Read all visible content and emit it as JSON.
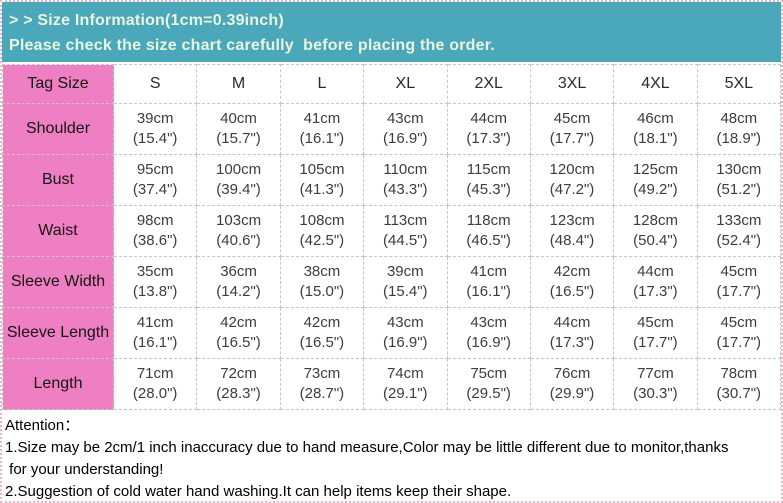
{
  "banner": {
    "title": "> > Size Information(1cm=0.39inch)",
    "subtitle": "Please check the size chart carefully  before placing the order.",
    "background_color": "#4BA7BA",
    "text_color": "#E8F6DF"
  },
  "table": {
    "columns": [
      "Tag Size",
      "S",
      "M",
      "L",
      "XL",
      "2XL",
      "3XL",
      "4XL",
      "5XL"
    ],
    "label_background_color": "#EF7FC3",
    "rows": [
      {
        "label": "Shoulder",
        "cells": [
          {
            "cm": "39cm",
            "inch": "(15.4\")"
          },
          {
            "cm": "40cm",
            "inch": "(15.7\")"
          },
          {
            "cm": "41cm",
            "inch": "(16.1\")"
          },
          {
            "cm": "43cm",
            "inch": "(16.9\")"
          },
          {
            "cm": "44cm",
            "inch": "(17.3\")"
          },
          {
            "cm": "45cm",
            "inch": "(17.7\")"
          },
          {
            "cm": "46cm",
            "inch": "(18.1\")"
          },
          {
            "cm": "48cm",
            "inch": "(18.9\")"
          }
        ]
      },
      {
        "label": "Bust",
        "cells": [
          {
            "cm": "95cm",
            "inch": "(37.4\")"
          },
          {
            "cm": "100cm",
            "inch": "(39.4\")"
          },
          {
            "cm": "105cm",
            "inch": "(41.3\")"
          },
          {
            "cm": "110cm",
            "inch": "(43.3\")"
          },
          {
            "cm": "115cm",
            "inch": "(45.3\")"
          },
          {
            "cm": "120cm",
            "inch": "(47.2\")"
          },
          {
            "cm": "125cm",
            "inch": "(49.2\")"
          },
          {
            "cm": "130cm",
            "inch": "(51.2\")"
          }
        ]
      },
      {
        "label": "Waist",
        "cells": [
          {
            "cm": "98cm",
            "inch": "(38.6\")"
          },
          {
            "cm": "103cm",
            "inch": "(40.6\")"
          },
          {
            "cm": "108cm",
            "inch": "(42.5\")"
          },
          {
            "cm": "113cm",
            "inch": "(44.5\")"
          },
          {
            "cm": "118cm",
            "inch": "(46.5\")"
          },
          {
            "cm": "123cm",
            "inch": "(48.4\")"
          },
          {
            "cm": "128cm",
            "inch": "(50.4\")"
          },
          {
            "cm": "133cm",
            "inch": "(52.4\")"
          }
        ]
      },
      {
        "label": "Sleeve Width",
        "cells": [
          {
            "cm": "35cm",
            "inch": "(13.8\")"
          },
          {
            "cm": "36cm",
            "inch": "(14.2\")"
          },
          {
            "cm": "38cm",
            "inch": "(15.0\")"
          },
          {
            "cm": "39cm",
            "inch": "(15.4\")"
          },
          {
            "cm": "41cm",
            "inch": "(16.1\")"
          },
          {
            "cm": "42cm",
            "inch": "(16.5\")"
          },
          {
            "cm": "44cm",
            "inch": "(17.3\")"
          },
          {
            "cm": "45cm",
            "inch": "(17.7\")"
          }
        ]
      },
      {
        "label": "Sleeve Length",
        "cells": [
          {
            "cm": "41cm",
            "inch": "(16.1\")"
          },
          {
            "cm": "42cm",
            "inch": "(16.5\")"
          },
          {
            "cm": "42cm",
            "inch": "(16.5\")"
          },
          {
            "cm": "43cm",
            "inch": "(16.9\")"
          },
          {
            "cm": "43cm",
            "inch": "(16.9\")"
          },
          {
            "cm": "44cm",
            "inch": "(17.3\")"
          },
          {
            "cm": "45cm",
            "inch": "(17.7\")"
          },
          {
            "cm": "45cm",
            "inch": "(17.7\")"
          }
        ]
      },
      {
        "label": "Length",
        "cells": [
          {
            "cm": "71cm",
            "inch": "(28.0\")"
          },
          {
            "cm": "72cm",
            "inch": "(28.3\")"
          },
          {
            "cm": "73cm",
            "inch": "(28.7\")"
          },
          {
            "cm": "74cm",
            "inch": "(29.1\")"
          },
          {
            "cm": "75cm",
            "inch": "(29.5\")"
          },
          {
            "cm": "76cm",
            "inch": "(29.9\")"
          },
          {
            "cm": "77cm",
            "inch": "(30.3\")"
          },
          {
            "cm": "78cm",
            "inch": "(30.7\")"
          }
        ]
      }
    ]
  },
  "notes": {
    "title": "Attention：",
    "lines": [
      "1.Size may be 2cm/1 inch inaccuracy due to hand measure,Color may be little different due to monitor,thanks",
      " for your understanding!",
      "2.Suggestion of cold water hand washing.It can help items keep their shape."
    ]
  }
}
